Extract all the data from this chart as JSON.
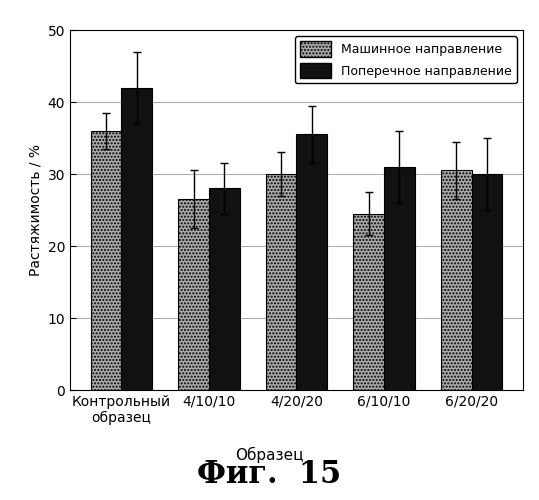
{
  "categories": [
    "Контрольный\nобразец",
    "4/10/10",
    "4/20/20",
    "6/10/10",
    "6/20/20"
  ],
  "machine_values": [
    36,
    26.5,
    30,
    24.5,
    30.5
  ],
  "cross_values": [
    42,
    28,
    35.5,
    31,
    30
  ],
  "machine_errors": [
    2.5,
    4,
    3,
    3,
    4
  ],
  "cross_errors": [
    5,
    3.5,
    4,
    5,
    5
  ],
  "ylabel": "Растяжимость / %",
  "xlabel": "Образец",
  "fig_caption": "Фиг.  15",
  "ylim": [
    0,
    50
  ],
  "yticks": [
    0,
    10,
    20,
    30,
    40,
    50
  ],
  "legend_labels": [
    "Машинное направление",
    "Поперечное направление"
  ],
  "machine_hatch": ".....",
  "machine_facecolor": "#aaaaaa",
  "cross_color": "#111111",
  "bar_width": 0.35,
  "background_color": "#ffffff"
}
